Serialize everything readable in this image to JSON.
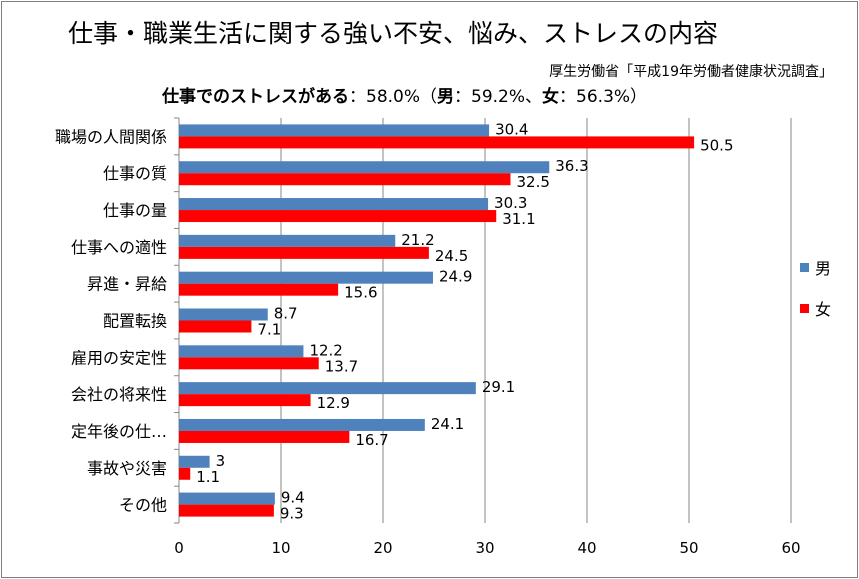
{
  "chart_data": {
    "type": "bar",
    "orientation": "horizontal",
    "title": "仕事・職業生活に関する強い不安、悩み、ストレスの内容",
    "subtitle": "厚生労働省「平成19年労働者健康状況調査」",
    "stress_summary": {
      "lead": "仕事でのストレスがある",
      "sep": "：",
      "total": "58.0%",
      "open": "（",
      "male_label": "男",
      "male_value": "59.2%",
      "mid": "、",
      "female_label": "女",
      "female_value": "56.3%",
      "close": "）"
    },
    "categories": [
      "職場の人間関係",
      "仕事の質",
      "仕事の量",
      "仕事への適性",
      "昇進・昇給",
      "配置転換",
      "雇用の安定性",
      "会社の将来性",
      "定年後の仕…",
      "事故や災害",
      "その他"
    ],
    "series": [
      {
        "name": "男",
        "color": "#4f81bd",
        "values": [
          30.4,
          36.3,
          30.3,
          21.2,
          24.9,
          8.7,
          12.2,
          29.1,
          24.1,
          3,
          9.4
        ]
      },
      {
        "name": "女",
        "color": "#ff0000",
        "values": [
          50.5,
          32.5,
          31.1,
          24.5,
          15.6,
          7.1,
          13.7,
          12.9,
          16.7,
          1.1,
          9.3
        ]
      }
    ],
    "value_labels": {
      "男": [
        "30.4",
        "36.3",
        "30.3",
        "21.2",
        "24.9",
        "8.7",
        "12.2",
        "29.1",
        "24.1",
        "3",
        "9.4"
      ],
      "女": [
        "50.5",
        "32.5",
        "31.1",
        "24.5",
        "15.6",
        "7.1",
        "13.7",
        "12.9",
        "16.7",
        "1.1",
        "9.3"
      ]
    },
    "x_ticks": [
      "0",
      "10",
      "20",
      "30",
      "40",
      "50",
      "60"
    ],
    "xlim": [
      0,
      60
    ],
    "grid": true,
    "legend": "right",
    "xlabel": "",
    "ylabel": ""
  }
}
